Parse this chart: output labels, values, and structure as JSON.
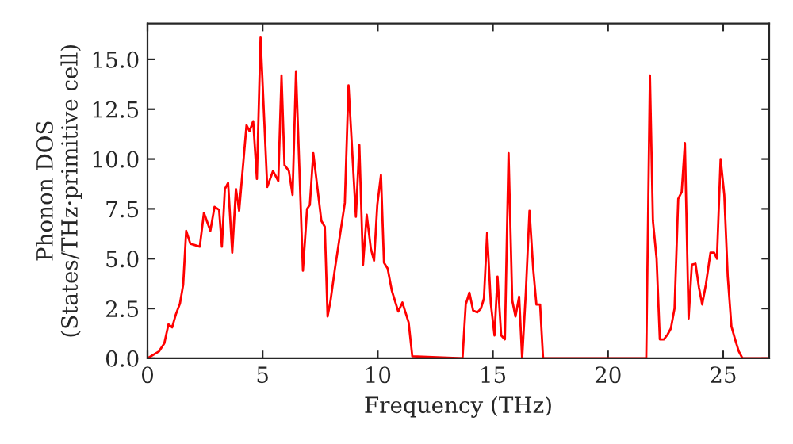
{
  "chart_data": {
    "type": "line",
    "xlabel": "Frequency (THz)",
    "ylabel": "Phonon DOS\n(States/THz·primitive cell)",
    "xlim": [
      0,
      27
    ],
    "ylim": [
      0,
      16.8
    ],
    "xticks": [
      0,
      5,
      10,
      15,
      20,
      25
    ],
    "yticks": [
      {
        "value": 0,
        "label": "0.0"
      },
      {
        "value": 2.5,
        "label": "2.5"
      },
      {
        "value": 5,
        "label": "5.0"
      },
      {
        "value": 7.5,
        "label": "7.5"
      },
      {
        "value": 10,
        "label": "10.0"
      },
      {
        "value": 12.5,
        "label": "12.5"
      },
      {
        "value": 15,
        "label": "15.0"
      }
    ],
    "grid": false,
    "marker": "none",
    "line_style": "solid",
    "series": [
      {
        "color": "#ff0000",
        "x": [
          0,
          0.5,
          0.73,
          0.91,
          1.07,
          1.23,
          1.41,
          1.55,
          1.68,
          1.86,
          2.27,
          2.45,
          2.73,
          2.91,
          3.11,
          3.23,
          3.36,
          3.5,
          3.68,
          3.84,
          3.98,
          4.3,
          4.43,
          4.59,
          4.75,
          4.91,
          5.2,
          5.45,
          5.68,
          5.82,
          5.95,
          6.14,
          6.3,
          6.45,
          6.75,
          6.93,
          7.05,
          7.2,
          7.55,
          7.7,
          7.82,
          7.95,
          8.14,
          8.57,
          8.73,
          9.05,
          9.2,
          9.36,
          9.52,
          9.7,
          9.84,
          9.98,
          10.14,
          10.27,
          10.43,
          10.61,
          10.89,
          11.07,
          11.34,
          11.5,
          13.68,
          13.82,
          13.98,
          14.14,
          14.32,
          14.48,
          14.61,
          14.75,
          14.91,
          15.07,
          15.2,
          15.36,
          15.52,
          15.68,
          15.84,
          15.98,
          16.14,
          16.27,
          16.43,
          16.59,
          16.75,
          16.89,
          17.05,
          17.18,
          21.66,
          21.82,
          21.95,
          22.11,
          22.25,
          22.43,
          22.59,
          22.73,
          22.89,
          23.05,
          23.2,
          23.34,
          23.5,
          23.64,
          23.8,
          23.95,
          24.09,
          24.25,
          24.45,
          24.61,
          24.73,
          24.89,
          25.05,
          25.2,
          25.36,
          25.52,
          25.68,
          25.84,
          27
        ],
        "values": [
          0,
          0.35,
          0.75,
          1.7,
          1.55,
          2.2,
          2.75,
          3.7,
          6.4,
          5.75,
          5.6,
          7.3,
          6.4,
          7.6,
          7.45,
          5.6,
          8.5,
          8.8,
          5.3,
          8.5,
          7.4,
          11.7,
          11.4,
          11.9,
          9.0,
          16.1,
          8.6,
          9.4,
          8.9,
          14.2,
          9.7,
          9.4,
          8.2,
          14.4,
          4.4,
          7.5,
          7.7,
          10.3,
          6.9,
          6.6,
          2.1,
          2.9,
          4.5,
          7.8,
          13.7,
          7.1,
          10.7,
          4.7,
          7.2,
          5.5,
          4.9,
          7.7,
          9.2,
          4.8,
          4.5,
          3.4,
          2.35,
          2.8,
          1.8,
          0.1,
          0,
          2.7,
          3.3,
          2.4,
          2.3,
          2.5,
          3.0,
          6.3,
          2.75,
          1.15,
          4.1,
          1.15,
          0.95,
          10.3,
          2.9,
          2.1,
          3.1,
          0,
          3.3,
          7.4,
          4.5,
          2.7,
          2.7,
          0,
          0,
          14.2,
          6.9,
          5.0,
          0.95,
          0.95,
          1.2,
          1.5,
          2.5,
          8.0,
          8.35,
          10.8,
          2.0,
          4.7,
          4.75,
          3.55,
          2.7,
          3.7,
          5.3,
          5.3,
          5.0,
          10.0,
          8.2,
          4.1,
          1.6,
          0.95,
          0.35,
          0,
          0
        ]
      }
    ]
  }
}
